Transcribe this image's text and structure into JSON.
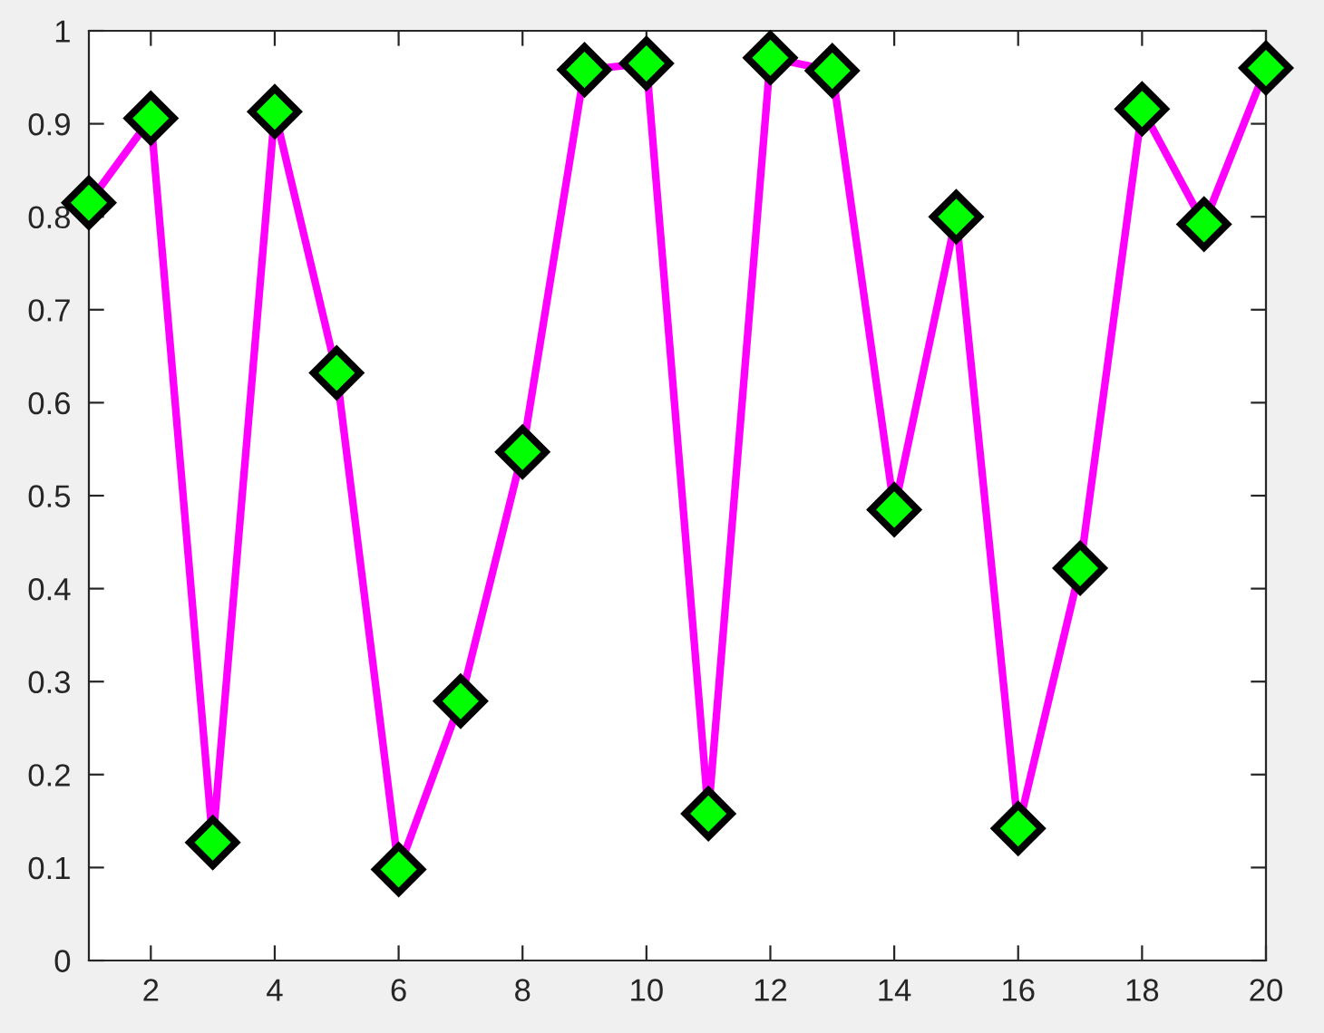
{
  "chart_data": {
    "type": "line",
    "x": [
      1,
      2,
      3,
      4,
      5,
      6,
      7,
      8,
      9,
      10,
      11,
      12,
      13,
      14,
      15,
      16,
      17,
      18,
      19,
      20
    ],
    "series": [
      {
        "color": "#ff00ff",
        "colors": [
          "#00ff00",
          "#00ff00",
          "#00ff00",
          "#00ff00",
          "#00ff00",
          "#00ff00",
          "#00ff00",
          "#00ff00",
          "#00ff00",
          "#00ff00",
          "#00ff00",
          "#00ff00",
          "#00ff00",
          "#00ff00",
          "#00ff00",
          "#00ff00",
          "#00ff00",
          "#00ff00",
          "#00ff00",
          "#00ff00"
        ],
        "values": [
          0.815,
          0.906,
          0.127,
          0.913,
          0.632,
          0.098,
          0.279,
          0.547,
          0.958,
          0.965,
          0.158,
          0.971,
          0.957,
          0.485,
          0.8,
          0.142,
          0.422,
          0.916,
          0.792,
          0.96
        ]
      }
    ],
    "marker": "diamond",
    "line_style": "solid",
    "grid": false,
    "xlim": [
      1,
      20
    ],
    "xticks": [
      2,
      4,
      6,
      8,
      10,
      12,
      14,
      16,
      18,
      20
    ],
    "ylim": [
      0,
      1
    ],
    "yticks": [
      0,
      0.1,
      0.2,
      0.3,
      0.4,
      0.5,
      0.6,
      0.7,
      0.8,
      0.9,
      1
    ]
  }
}
